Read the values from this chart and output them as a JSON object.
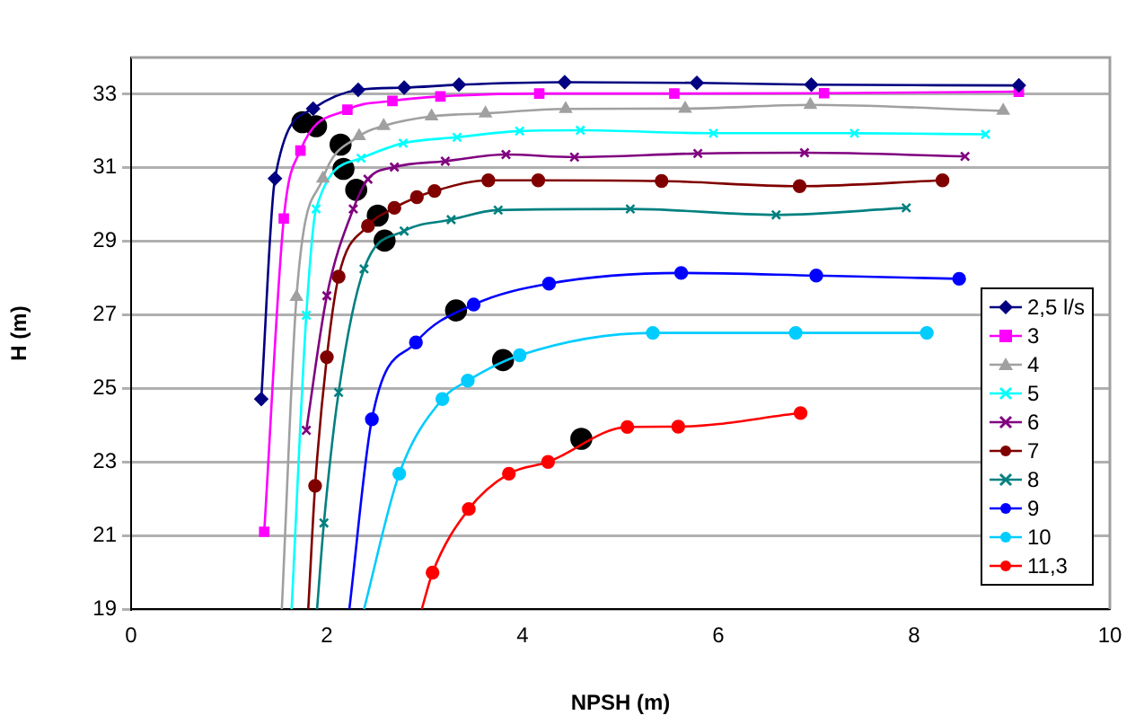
{
  "chart_data": {
    "type": "line",
    "xlabel": "NPSH (m)",
    "ylabel": "H (m)",
    "xlim": [
      0,
      10
    ],
    "xticks": [
      0,
      2,
      4,
      6,
      8,
      10
    ],
    "ylim": [
      19,
      34
    ],
    "yticks": [
      19,
      21,
      23,
      25,
      27,
      29,
      31,
      33
    ],
    "grid": "y",
    "legend": "right",
    "series": [
      {
        "name": "2,5 l/s",
        "marker": "diamond",
        "color": "#000080",
        "x": [
          1.33,
          1.47,
          1.86,
          2.32,
          2.79,
          3.35,
          4.43,
          5.78,
          6.95,
          9.07
        ],
        "values": [
          24.71,
          30.71,
          32.61,
          33.12,
          33.18,
          33.26,
          33.33,
          33.31,
          33.26,
          33.24
        ]
      },
      {
        "name": "3",
        "marker": "square",
        "color": "#ff00ff",
        "x": [
          1.36,
          1.56,
          1.73,
          2.21,
          2.67,
          3.16,
          4.17,
          5.55,
          7.08,
          9.07
        ],
        "values": [
          21.1,
          29.62,
          31.47,
          32.58,
          32.82,
          32.94,
          33.02,
          33.02,
          33.03,
          33.07
        ]
      },
      {
        "name": "4",
        "marker": "triangle",
        "color": "#a0a0a0",
        "x": [
          1.54,
          1.69,
          1.96,
          2.33,
          2.58,
          3.07,
          3.62,
          4.44,
          5.66,
          6.94,
          8.91
        ],
        "values": [
          19,
          27.49,
          30.71,
          31.86,
          32.14,
          32.4,
          32.48,
          32.6,
          32.61,
          32.71,
          32.55
        ]
      },
      {
        "name": "5",
        "marker": "cross",
        "color": "#00ffff",
        "x": [
          1.64,
          1.79,
          1.89,
          2.35,
          2.78,
          3.33,
          3.97,
          4.59,
          5.95,
          7.39,
          8.73
        ],
        "values": [
          19,
          26.99,
          29.88,
          31.26,
          31.67,
          31.83,
          32.0,
          32.02,
          31.94,
          31.94,
          31.91
        ]
      },
      {
        "name": "6",
        "marker": "cross",
        "color": "#800080",
        "x": [
          1.79,
          2.0,
          2.27,
          2.42,
          2.69,
          3.21,
          3.83,
          4.53,
          5.79,
          6.88,
          8.52
        ],
        "values": [
          23.86,
          27.52,
          29.88,
          30.69,
          31.02,
          31.18,
          31.36,
          31.29,
          31.39,
          31.41,
          31.31
        ]
      },
      {
        "name": "7",
        "marker": "circle",
        "color": "#800000",
        "x": [
          1.81,
          1.88,
          2.0,
          2.12,
          2.42,
          2.69,
          2.92,
          3.1,
          3.65,
          4.16,
          5.42,
          6.83,
          8.29
        ],
        "values": [
          19,
          22.35,
          25.85,
          28.04,
          29.42,
          29.91,
          30.2,
          30.37,
          30.66,
          30.66,
          30.64,
          30.5,
          30.66
        ]
      },
      {
        "name": "8",
        "marker": "cross",
        "color": "#008080",
        "x": [
          1.9,
          1.97,
          2.12,
          2.38,
          2.79,
          3.27,
          3.75,
          5.1,
          6.59,
          7.92
        ],
        "values": [
          19,
          21.34,
          24.89,
          28.25,
          29.28,
          29.59,
          29.85,
          29.88,
          29.72,
          29.91
        ]
      },
      {
        "name": "9",
        "marker": "circle",
        "color": "#0000ff",
        "x": [
          2.23,
          2.46,
          2.91,
          3.5,
          4.27,
          5.62,
          7.0,
          8.46
        ],
        "values": [
          19,
          24.16,
          26.25,
          27.28,
          27.85,
          28.14,
          28.07,
          27.98
        ]
      },
      {
        "name": "10",
        "marker": "circle",
        "color": "#00ccff",
        "x": [
          2.38,
          2.74,
          3.18,
          3.44,
          3.97,
          5.33,
          6.79,
          8.13
        ],
        "values": [
          19,
          22.68,
          24.71,
          25.21,
          25.9,
          26.51,
          26.51,
          26.51
        ]
      },
      {
        "name": "11,3",
        "marker": "circle",
        "color": "#ff0000",
        "x": [
          2.97,
          3.08,
          3.45,
          3.86,
          4.26,
          5.07,
          5.59,
          6.84
        ],
        "values": [
          19,
          19.99,
          21.72,
          22.68,
          23.0,
          23.95,
          23.96,
          24.33
        ]
      },
      {
        "type": "scatter",
        "marker": "circle",
        "color": "#000000",
        "x": [
          1.75,
          1.89,
          2.14,
          2.17,
          2.3,
          2.52,
          2.59,
          3.32,
          3.8,
          4.6
        ],
        "values": [
          32.24,
          32.13,
          31.63,
          30.97,
          30.4,
          29.7,
          29.02,
          27.12,
          25.77,
          23.63
        ]
      }
    ]
  }
}
